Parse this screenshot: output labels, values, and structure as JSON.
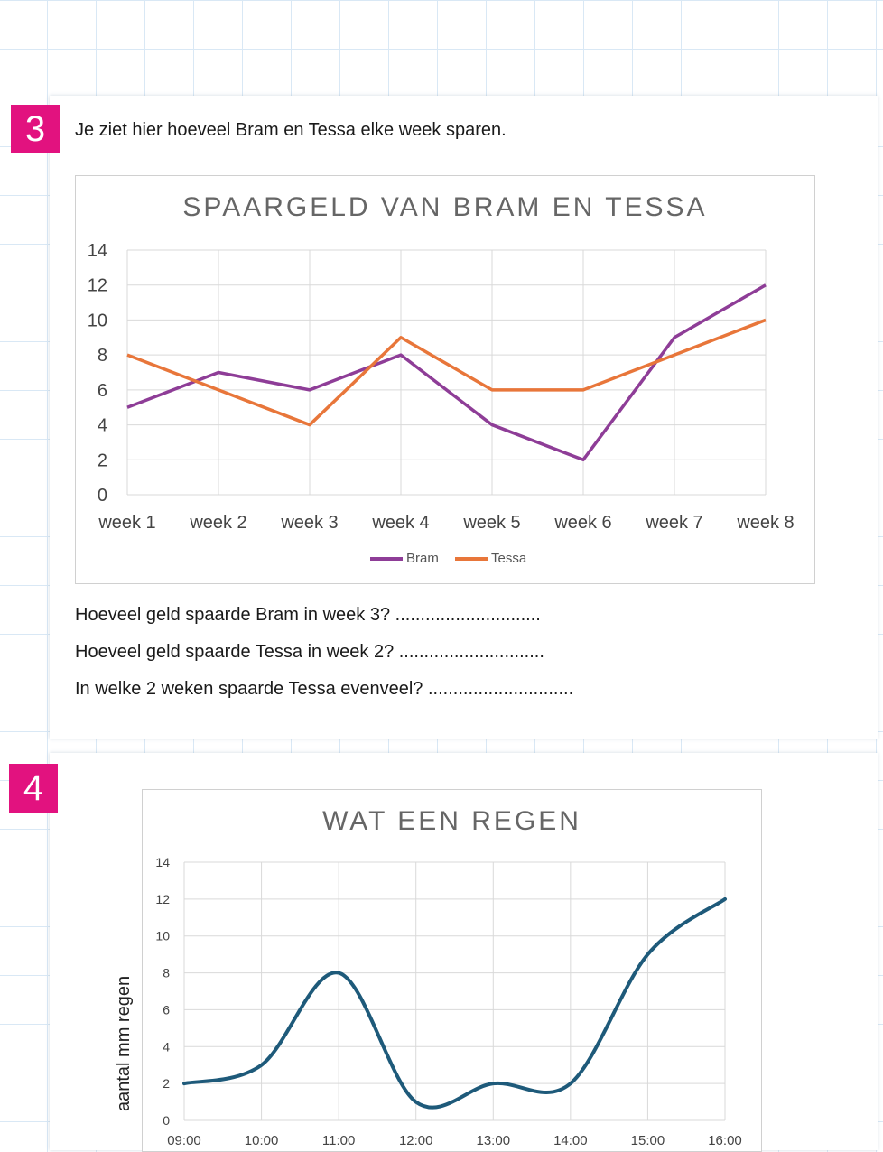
{
  "exercise3": {
    "number": "3",
    "intro": "Je ziet hier hoeveel Bram en Tessa elke week sparen.",
    "questions": [
      "Hoeveel geld spaarde Bram in week 3? .............................",
      "Hoeveel geld spaarde Tessa in week 2? .............................",
      "In welke 2 weken spaarde Tessa evenveel? ............................."
    ]
  },
  "exercise4": {
    "number": "4"
  },
  "colors": {
    "badge": "#e2127f",
    "bram": "#8e3d97",
    "tessa": "#e8763a",
    "rain": "#1e5a7a",
    "grid": "#d9d9d9"
  },
  "chart_data": [
    {
      "type": "line",
      "title": "SPAARGELD VAN BRAM EN TESSA",
      "categories": [
        "week 1",
        "week 2",
        "week 3",
        "week 4",
        "week 5",
        "week 6",
        "week 7",
        "week 8"
      ],
      "series": [
        {
          "name": "Bram",
          "values": [
            5,
            7,
            6,
            8,
            4,
            2,
            9,
            12
          ]
        },
        {
          "name": "Tessa",
          "values": [
            8,
            6,
            4,
            9,
            6,
            6,
            8,
            10
          ]
        }
      ],
      "ylim": [
        0,
        14
      ],
      "yticks": [
        0,
        2,
        4,
        6,
        8,
        10,
        12,
        14
      ],
      "grid": true,
      "legend": "bottom"
    },
    {
      "type": "line",
      "title": "WAT EEN REGEN",
      "ylabel": "aantal mm regen",
      "categories": [
        "09:00",
        "10:00",
        "11:00",
        "12:00",
        "13:00",
        "14:00",
        "15:00",
        "16:00"
      ],
      "values": [
        2,
        3,
        8,
        1,
        2,
        2,
        9,
        12
      ],
      "ylim": [
        0,
        14
      ],
      "yticks": [
        0,
        2,
        4,
        6,
        8,
        10,
        12,
        14
      ],
      "grid": true,
      "smooth": true
    }
  ]
}
